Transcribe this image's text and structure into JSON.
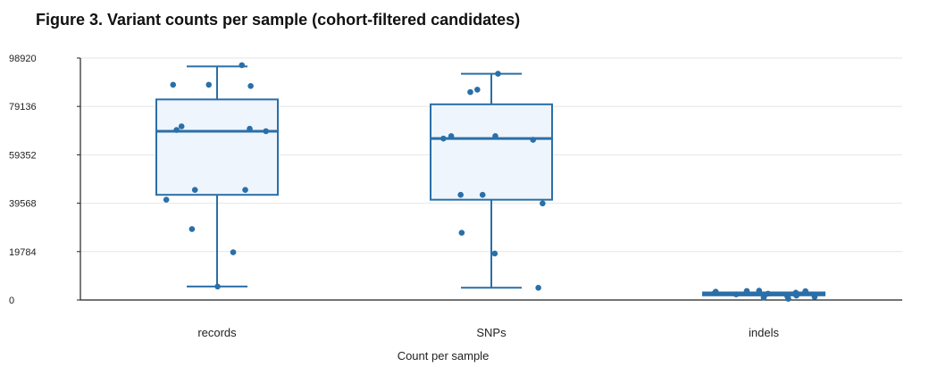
{
  "chart_data": {
    "type": "box",
    "title": "Figure 3. Variant counts per sample (cohort-filtered candidates)",
    "xlabel": "Count per sample",
    "ylabel": "",
    "ylim": [
      0,
      98920
    ],
    "yticks": [
      0,
      19784,
      39568,
      59352,
      79136,
      98920
    ],
    "grid": true,
    "categories": [
      "records",
      "SNPs",
      "indels"
    ],
    "colors": {
      "stroke": "#2a6fa8",
      "fill": "#eef5fc",
      "point": "#2a6fa8",
      "grid": "#e6e6e6",
      "axis": "#222222"
    },
    "boxes": [
      {
        "category": "records",
        "whisker_low": 5500,
        "q1": 43000,
        "median": 69000,
        "q3": 82000,
        "whisker_high": 95500,
        "points": [
          96000,
          88000,
          88000,
          87500,
          71000,
          70000,
          69500,
          69000,
          45000,
          45000,
          41000,
          29000,
          19500,
          5500
        ]
      },
      {
        "category": "SNPs",
        "whisker_low": 5000,
        "q1": 41000,
        "median": 66000,
        "q3": 80000,
        "whisker_high": 92500,
        "points": [
          92500,
          86000,
          85000,
          67000,
          67000,
          66000,
          65500,
          43000,
          43000,
          39500,
          27500,
          19000,
          5000
        ]
      },
      {
        "category": "indels",
        "whisker_low": 1900,
        "q1": 1900,
        "median": 2600,
        "q3": 3100,
        "whisker_high": 3100,
        "points": [
          3800,
          3700,
          3600,
          3400,
          3000,
          2800,
          2600,
          2300,
          2000,
          1800,
          1500,
          1300,
          1000,
          500
        ]
      }
    ]
  }
}
